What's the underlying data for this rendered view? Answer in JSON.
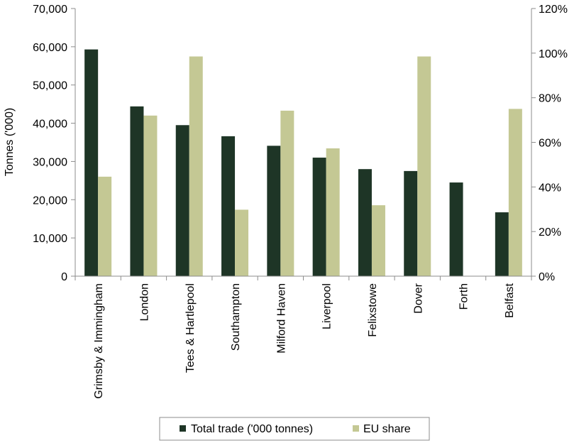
{
  "chart_data": {
    "type": "bar",
    "categories": [
      "Grimsby & Immingham",
      "London",
      "Tees & Hartlepool",
      "Southampton",
      "Milford Haven",
      "Liverpool",
      "Felixstowe",
      "Dover",
      "Forth",
      "Belfast"
    ],
    "series": [
      {
        "name": "Total trade ('000 tonnes)",
        "axis": "left",
        "color": "#1e3526",
        "values": [
          59300,
          44400,
          39500,
          36600,
          34100,
          31000,
          28000,
          27500,
          24500,
          16700
        ]
      },
      {
        "name": "EU share",
        "axis": "right",
        "color": "#c4c894",
        "values": [
          0.446,
          0.72,
          0.985,
          0.298,
          0.742,
          0.573,
          0.318,
          0.985,
          null,
          0.75
        ]
      }
    ],
    "ylabel": "Tonnes ('000)",
    "ylim": [
      0,
      70000
    ],
    "y_ticks": [
      "0",
      "10,000",
      "20,000",
      "30,000",
      "40,000",
      "50,000",
      "60,000",
      "70,000"
    ],
    "y2lim": [
      0,
      1.2
    ],
    "y2_ticks": [
      "0%",
      "20%",
      "40%",
      "60%",
      "80%",
      "100%",
      "120%"
    ],
    "grid": false,
    "legend": "bottom"
  }
}
